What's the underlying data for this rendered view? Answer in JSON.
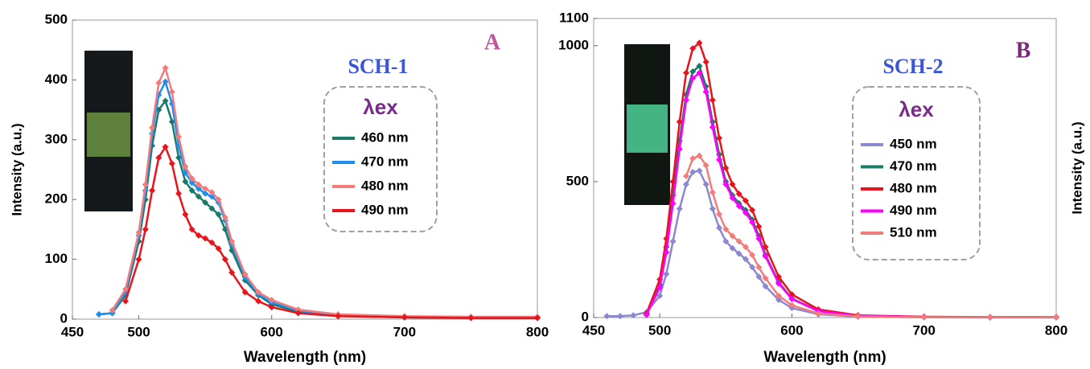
{
  "chart_data": [
    {
      "type": "line",
      "title": "A",
      "subtitle": "SCH-1",
      "legend_title": "λex",
      "xlabel": "Wavelength (nm)",
      "ylabel": "Intensity (a.u.)",
      "marker": "diamond",
      "x": [
        470,
        480,
        490,
        500,
        505,
        510,
        515,
        520,
        525,
        530,
        535,
        540,
        545,
        550,
        555,
        560,
        565,
        570,
        580,
        590,
        600,
        620,
        650,
        700,
        750,
        800
      ],
      "series": [
        {
          "name": "460 nm",
          "color": "#1a7a68",
          "values": [
            8,
            10,
            40,
            130,
            200,
            290,
            350,
            365,
            330,
            270,
            230,
            215,
            205,
            195,
            185,
            175,
            150,
            115,
            65,
            40,
            25,
            12,
            5,
            3,
            2,
            2
          ]
        },
        {
          "name": "470 nm",
          "color": "#1e8ff0",
          "values": [
            8,
            10,
            45,
            140,
            215,
            310,
            375,
            397,
            360,
            290,
            245,
            228,
            218,
            210,
            205,
            195,
            165,
            125,
            70,
            42,
            28,
            14,
            6,
            4,
            3,
            3
          ]
        },
        {
          "name": "480 nm",
          "color": "#f27c7c",
          "values": [
            null,
            15,
            50,
            145,
            225,
            320,
            395,
            420,
            380,
            305,
            255,
            235,
            225,
            218,
            212,
            200,
            170,
            130,
            75,
            45,
            32,
            16,
            8,
            5,
            4,
            4
          ]
        },
        {
          "name": "490 nm",
          "color": "#e8131b",
          "values": [
            null,
            null,
            30,
            100,
            150,
            215,
            270,
            288,
            260,
            210,
            175,
            150,
            140,
            135,
            128,
            118,
            100,
            78,
            45,
            30,
            20,
            10,
            5,
            3,
            2,
            2
          ]
        }
      ],
      "xlim": [
        450,
        800
      ],
      "ylim": [
        0,
        500
      ],
      "xticks": [
        450,
        500,
        600,
        700,
        800
      ],
      "yticks": [
        0,
        100,
        200,
        300,
        400,
        500
      ]
    },
    {
      "type": "line",
      "title": "B",
      "subtitle": "SCH-2",
      "legend_title": "λex",
      "xlabel": "Wavelength (nm)",
      "ylabel": "Intensity (a.u.)",
      "marker": "diamond",
      "x": [
        460,
        470,
        480,
        490,
        500,
        505,
        510,
        515,
        520,
        525,
        530,
        535,
        540,
        545,
        550,
        555,
        560,
        565,
        570,
        575,
        580,
        590,
        600,
        620,
        650,
        700,
        750,
        800
      ],
      "series": [
        {
          "name": "450 nm",
          "color": "#8b87d0",
          "values": [
            5,
            5,
            8,
            20,
            80,
            160,
            280,
            400,
            490,
            535,
            540,
            490,
            400,
            330,
            280,
            255,
            235,
            215,
            185,
            150,
            115,
            65,
            35,
            12,
            3,
            1,
            0,
            0
          ]
        },
        {
          "name": "470 nm",
          "color": "#1a7a68",
          "values": [
            null,
            null,
            null,
            10,
            120,
            260,
            450,
            650,
            820,
            905,
            925,
            850,
            720,
            600,
            500,
            450,
            420,
            395,
            360,
            300,
            230,
            130,
            70,
            25,
            6,
            2,
            1,
            1
          ]
        },
        {
          "name": "480 nm",
          "color": "#e8131b",
          "values": [
            null,
            null,
            null,
            15,
            140,
            290,
            500,
            720,
            900,
            990,
            1010,
            940,
            800,
            660,
            550,
            490,
            455,
            430,
            395,
            335,
            260,
            150,
            85,
            30,
            8,
            3,
            2,
            2
          ]
        },
        {
          "name": "490 nm",
          "color": "#ff00ff",
          "values": [
            null,
            null,
            null,
            10,
            110,
            240,
            420,
            620,
            800,
            880,
            900,
            830,
            700,
            580,
            490,
            440,
            410,
            385,
            350,
            290,
            225,
            125,
            68,
            24,
            6,
            2,
            1,
            1
          ]
        },
        {
          "name": "510 nm",
          "color": "#f27c7c",
          "values": [
            null,
            null,
            null,
            null,
            null,
            null,
            null,
            null,
            520,
            585,
            595,
            560,
            460,
            380,
            325,
            300,
            280,
            260,
            230,
            185,
            145,
            80,
            45,
            15,
            4,
            1,
            1,
            1
          ]
        }
      ],
      "xlim": [
        450,
        800
      ],
      "ylim": [
        0,
        1100
      ],
      "xticks": [
        450,
        500,
        600,
        700,
        800
      ],
      "yticks": [
        0,
        500,
        1000,
        1100
      ]
    }
  ]
}
